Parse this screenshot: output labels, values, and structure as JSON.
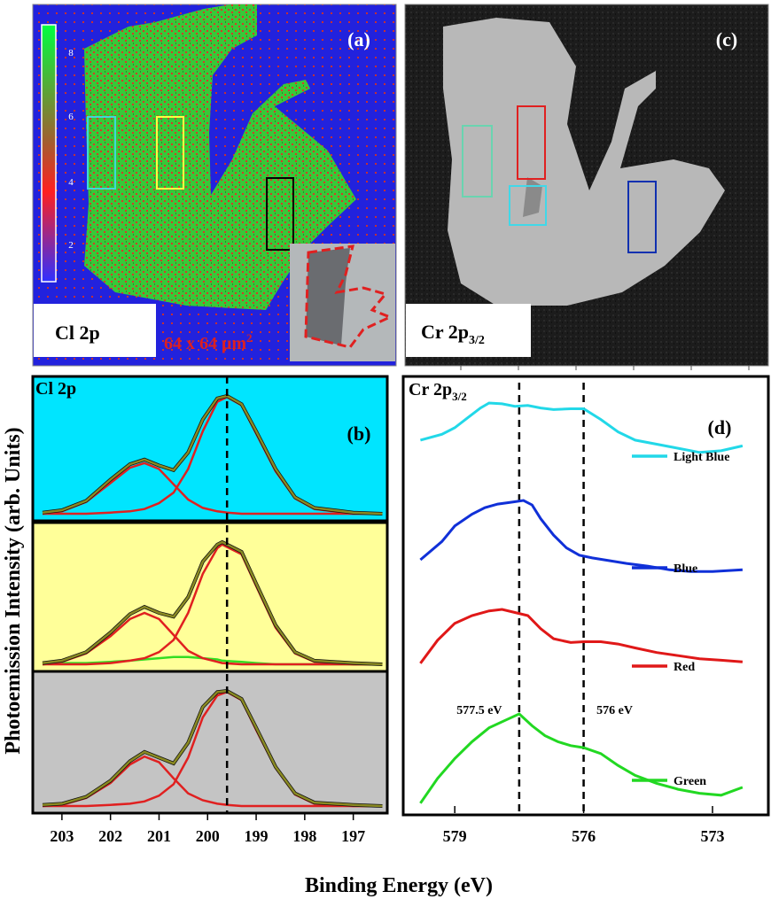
{
  "figure": {
    "ylabel": "Photoemission Intensity (arb. Units)",
    "xlabel": "Binding Energy (eV)"
  },
  "panel_a": {
    "letter": "(a)",
    "label": "Cl 2p",
    "scale_text": "64 x 64 μm",
    "scale_sup": "2",
    "colorbar_ticks": [
      "8",
      "6",
      "4",
      "2"
    ]
  },
  "panel_c": {
    "letter": "(c)",
    "label": "Cr 2p",
    "label_sub": "3/2"
  },
  "chart_data": [
    {
      "panel": "(b)",
      "type": "line",
      "title": "Cl 2p",
      "xlim": [
        203.6,
        196.3
      ],
      "x_ticks": [
        "203",
        "202",
        "201",
        "200",
        "199",
        "198",
        "197"
      ],
      "reference_line_x": 199.6,
      "subplots": [
        {
          "background": "#00e5ff",
          "x": [
            203.4,
            203.0,
            202.5,
            202.0,
            201.6,
            201.3,
            201.0,
            200.7,
            200.4,
            200.1,
            199.8,
            199.6,
            199.3,
            199.0,
            198.6,
            198.2,
            197.8,
            197.0,
            196.4
          ],
          "data": [
            0.01,
            0.03,
            0.11,
            0.29,
            0.42,
            0.46,
            0.41,
            0.37,
            0.52,
            0.8,
            0.98,
            1.0,
            0.93,
            0.7,
            0.38,
            0.14,
            0.05,
            0.01,
            0.0
          ],
          "peak1": [
            0.0,
            0.02,
            0.1,
            0.26,
            0.39,
            0.43,
            0.38,
            0.25,
            0.12,
            0.05,
            0.02,
            0.01,
            0.0,
            0.0,
            0.0,
            0.0,
            0.0,
            0.0,
            0.0
          ],
          "peak2": [
            0.0,
            0.0,
            0.0,
            0.01,
            0.02,
            0.04,
            0.09,
            0.18,
            0.38,
            0.7,
            0.95,
            0.99,
            0.92,
            0.68,
            0.36,
            0.13,
            0.04,
            0.0,
            0.0
          ]
        },
        {
          "background": "#ffff99",
          "x": [
            203.4,
            203.0,
            202.5,
            202.0,
            201.6,
            201.3,
            201.0,
            200.7,
            200.4,
            200.1,
            199.8,
            199.7,
            199.3,
            199.0,
            198.6,
            198.2,
            197.8,
            197.0,
            196.4
          ],
          "data": [
            0.01,
            0.03,
            0.1,
            0.26,
            0.41,
            0.47,
            0.42,
            0.39,
            0.55,
            0.84,
            0.98,
            1.0,
            0.92,
            0.66,
            0.32,
            0.1,
            0.03,
            0.01,
            0.0
          ],
          "peak1": [
            0.0,
            0.02,
            0.09,
            0.23,
            0.37,
            0.42,
            0.37,
            0.24,
            0.11,
            0.05,
            0.02,
            0.01,
            0.0,
            0.0,
            0.0,
            0.0,
            0.0,
            0.0,
            0.0
          ],
          "peak2": [
            0.0,
            0.0,
            0.0,
            0.01,
            0.03,
            0.05,
            0.1,
            0.2,
            0.42,
            0.74,
            0.95,
            0.98,
            0.9,
            0.64,
            0.3,
            0.09,
            0.02,
            0.0,
            0.0
          ],
          "extra": [
            0.0,
            0.01,
            0.01,
            0.02,
            0.03,
            0.04,
            0.05,
            0.06,
            0.06,
            0.05,
            0.04,
            0.03,
            0.02,
            0.01,
            0.0,
            0.0,
            0.0,
            0.0,
            0.0
          ]
        },
        {
          "background": "#c4c4c4",
          "x": [
            203.4,
            203.0,
            202.5,
            202.0,
            201.6,
            201.3,
            201.0,
            200.7,
            200.4,
            200.1,
            199.8,
            199.6,
            199.3,
            199.0,
            198.6,
            198.2,
            197.8,
            197.0,
            196.4
          ],
          "data": [
            0.01,
            0.02,
            0.08,
            0.22,
            0.39,
            0.47,
            0.42,
            0.37,
            0.55,
            0.86,
            0.99,
            1.0,
            0.93,
            0.68,
            0.34,
            0.11,
            0.03,
            0.01,
            0.0
          ],
          "peak1": [
            0.0,
            0.01,
            0.07,
            0.2,
            0.36,
            0.43,
            0.38,
            0.24,
            0.11,
            0.05,
            0.02,
            0.01,
            0.0,
            0.0,
            0.0,
            0.0,
            0.0,
            0.0,
            0.0
          ],
          "peak2": [
            0.0,
            0.0,
            0.0,
            0.01,
            0.02,
            0.04,
            0.09,
            0.19,
            0.42,
            0.77,
            0.96,
            0.99,
            0.92,
            0.66,
            0.33,
            0.1,
            0.02,
            0.0,
            0.0
          ]
        }
      ],
      "colors": {
        "data": "#111111",
        "fit": "#8a8a22",
        "peaks": "#e02020",
        "extra": "#33dd22"
      }
    },
    {
      "panel": "(d)",
      "type": "line",
      "title": "Cr 2p",
      "title_sub": "3/2",
      "xlim": [
        580.2,
        571.7
      ],
      "x_ticks": [
        "579",
        "576",
        "573"
      ],
      "reference_lines": [
        {
          "x": 577.5,
          "label": "577.5 eV"
        },
        {
          "x": 576.0,
          "label": "576 eV"
        }
      ],
      "series": [
        {
          "name": "Light Blue",
          "color": "#22d8e8",
          "x": [
            579.8,
            579.3,
            579.0,
            578.7,
            578.4,
            578.2,
            577.9,
            577.6,
            577.3,
            577.0,
            576.7,
            576.3,
            576.0,
            575.6,
            575.2,
            574.8,
            574.3,
            573.8,
            573.3,
            572.8,
            572.3
          ],
          "y": [
            0.55,
            0.62,
            0.7,
            0.82,
            0.94,
            1.0,
            0.99,
            0.96,
            0.97,
            0.94,
            0.92,
            0.93,
            0.93,
            0.8,
            0.65,
            0.55,
            0.5,
            0.45,
            0.4,
            0.42,
            0.48
          ]
        },
        {
          "name": "Blue",
          "color": "#1030d8",
          "x": [
            579.8,
            579.3,
            579.0,
            578.6,
            578.3,
            578.0,
            577.7,
            577.4,
            577.2,
            577.0,
            576.7,
            576.4,
            576.1,
            575.8,
            575.4,
            575.0,
            574.5,
            574.0,
            573.5,
            573.0,
            572.3
          ],
          "y": [
            0.35,
            0.55,
            0.72,
            0.85,
            0.92,
            0.96,
            0.98,
            1.0,
            0.95,
            0.8,
            0.62,
            0.48,
            0.4,
            0.37,
            0.34,
            0.31,
            0.28,
            0.24,
            0.22,
            0.22,
            0.24
          ]
        },
        {
          "name": "Red",
          "color": "#e01818",
          "x": [
            579.8,
            579.4,
            579.0,
            578.6,
            578.2,
            577.9,
            577.6,
            577.3,
            577.0,
            576.7,
            576.3,
            576.0,
            575.6,
            575.2,
            574.8,
            574.3,
            573.8,
            573.3,
            572.8,
            572.3
          ],
          "y": [
            0.3,
            0.6,
            0.82,
            0.92,
            0.98,
            1.0,
            0.96,
            0.92,
            0.75,
            0.62,
            0.57,
            0.58,
            0.58,
            0.55,
            0.5,
            0.44,
            0.4,
            0.36,
            0.34,
            0.32
          ]
        },
        {
          "name": "Green",
          "color": "#22d822",
          "x": [
            579.8,
            579.4,
            579.0,
            578.6,
            578.2,
            577.8,
            577.5,
            577.2,
            576.9,
            576.6,
            576.3,
            576.0,
            575.6,
            575.2,
            574.8,
            574.3,
            573.8,
            573.3,
            572.8,
            572.3
          ],
          "y": [
            0.1,
            0.35,
            0.55,
            0.72,
            0.86,
            0.94,
            1.0,
            0.88,
            0.78,
            0.72,
            0.68,
            0.66,
            0.6,
            0.48,
            0.38,
            0.3,
            0.24,
            0.2,
            0.18,
            0.26
          ]
        }
      ]
    }
  ]
}
